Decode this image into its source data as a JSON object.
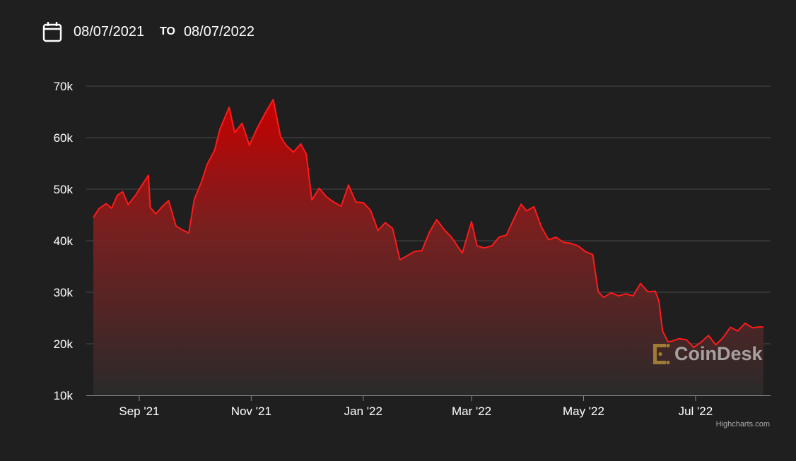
{
  "date_range": {
    "from": "08/07/2021",
    "separator": "TO",
    "to": "08/07/2022"
  },
  "icons": {
    "calendar": "calendar-icon"
  },
  "watermark": {
    "text": "CoinDesk",
    "icon": "coindesk-logo-icon"
  },
  "credits": "Highcharts.com",
  "colors": {
    "background": "#1f1f1f",
    "line": "#ff1a1a",
    "grid": "#4a4a4a",
    "text": "#ffffff"
  },
  "chart_data": {
    "type": "area",
    "title": "",
    "xlabel": "",
    "ylabel": "",
    "ylim": [
      10000,
      70000
    ],
    "y_ticks": [
      10000,
      20000,
      30000,
      40000,
      50000,
      60000,
      70000
    ],
    "y_tick_labels": [
      "10k",
      "20k",
      "30k",
      "40k",
      "50k",
      "60k",
      "70k"
    ],
    "x_range": [
      "2021-08-07",
      "2022-08-07"
    ],
    "x_ticks": [
      "2021-09-01",
      "2021-11-01",
      "2022-01-01",
      "2022-03-01",
      "2022-05-01",
      "2022-07-01"
    ],
    "x_tick_labels": [
      "Sep '21",
      "Nov '21",
      "Jan '22",
      "Mar '22",
      "May '22",
      "Jul '22"
    ],
    "grid": true,
    "legend": "none",
    "series": [
      {
        "x": [
          "2021-08-07",
          "2021-08-10",
          "2021-08-14",
          "2021-08-17",
          "2021-08-20",
          "2021-08-23",
          "2021-08-26",
          "2021-08-30",
          "2021-09-02",
          "2021-09-06",
          "2021-09-07",
          "2021-09-10",
          "2021-09-14",
          "2021-09-17",
          "2021-09-21",
          "2021-09-24",
          "2021-09-28",
          "2021-10-01",
          "2021-10-05",
          "2021-10-08",
          "2021-10-12",
          "2021-10-15",
          "2021-10-20",
          "2021-10-23",
          "2021-10-27",
          "2021-10-31",
          "2021-11-04",
          "2021-11-09",
          "2021-11-13",
          "2021-11-17",
          "2021-11-20",
          "2021-11-24",
          "2021-11-28",
          "2021-12-01",
          "2021-12-04",
          "2021-12-08",
          "2021-12-12",
          "2021-12-16",
          "2021-12-20",
          "2021-12-24",
          "2021-12-28",
          "2022-01-01",
          "2022-01-05",
          "2022-01-09",
          "2022-01-13",
          "2022-01-17",
          "2022-01-21",
          "2022-01-24",
          "2022-01-29",
          "2022-02-02",
          "2022-02-06",
          "2022-02-10",
          "2022-02-14",
          "2022-02-18",
          "2022-02-24",
          "2022-03-01",
          "2022-03-04",
          "2022-03-08",
          "2022-03-12",
          "2022-03-16",
          "2022-03-20",
          "2022-03-24",
          "2022-03-28",
          "2022-03-31",
          "2022-04-04",
          "2022-04-08",
          "2022-04-12",
          "2022-04-16",
          "2022-04-20",
          "2022-04-24",
          "2022-04-28",
          "2022-05-02",
          "2022-05-06",
          "2022-05-09",
          "2022-05-12",
          "2022-05-16",
          "2022-05-20",
          "2022-05-24",
          "2022-05-28",
          "2022-06-01",
          "2022-06-05",
          "2022-06-09",
          "2022-06-11",
          "2022-06-13",
          "2022-06-16",
          "2022-06-18",
          "2022-06-22",
          "2022-06-26",
          "2022-06-30",
          "2022-07-04",
          "2022-07-08",
          "2022-07-12",
          "2022-07-16",
          "2022-07-20",
          "2022-07-24",
          "2022-07-28",
          "2022-08-01",
          "2022-08-05",
          "2022-08-07"
        ],
        "values": [
          44500,
          46200,
          47200,
          46300,
          48800,
          49500,
          47000,
          48800,
          50500,
          52700,
          46500,
          45200,
          46800,
          47800,
          42900,
          42200,
          41500,
          48000,
          51500,
          54800,
          57500,
          61700,
          65900,
          61000,
          62800,
          58500,
          61700,
          65000,
          67400,
          60200,
          58500,
          57200,
          58800,
          56800,
          47900,
          50200,
          48500,
          47500,
          46700,
          50800,
          47500,
          47400,
          45900,
          42000,
          43500,
          42400,
          36300,
          36900,
          37900,
          38100,
          41600,
          44100,
          42200,
          40700,
          37600,
          43700,
          39000,
          38600,
          39000,
          40700,
          41100,
          44200,
          47100,
          45800,
          46600,
          42700,
          40200,
          40700,
          39700,
          39500,
          39000,
          37900,
          37300,
          30100,
          29000,
          29900,
          29300,
          29700,
          29300,
          31700,
          30100,
          30200,
          28400,
          22500,
          20400,
          20500,
          21000,
          20800,
          19300,
          20300,
          21600,
          19800,
          21200,
          23200,
          22500,
          24000,
          23100,
          23300,
          23200
        ]
      }
    ]
  }
}
